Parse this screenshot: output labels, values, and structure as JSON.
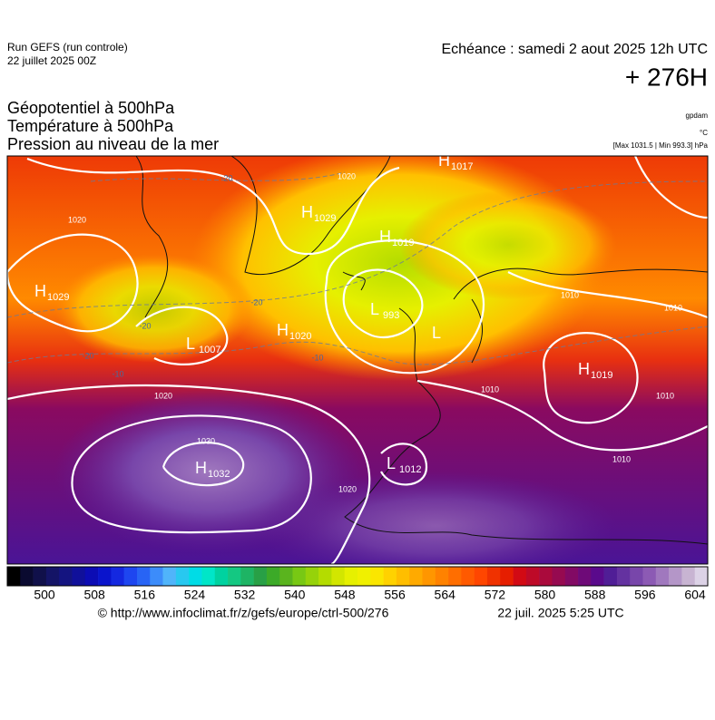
{
  "header": {
    "run": "Run GEFS (run controle)",
    "date": "22 juillet 2025 00Z",
    "echeance": "Echéance : samedi 2 aout 2025 12h UTC",
    "lead": "+ 276H"
  },
  "titles": [
    "Géopotentiel à 500hPa",
    "Température à 500hPa",
    "Pression au niveau de la mer"
  ],
  "units": [
    "gpdam",
    "°C",
    "[Max 1031.5 | Min 993.3] hPa"
  ],
  "map": {
    "centers": [
      {
        "symbol": "H",
        "value": "1017"
      },
      {
        "symbol": "H",
        "value": "1029"
      },
      {
        "symbol": "H",
        "value": "1019"
      },
      {
        "symbol": "H",
        "value": "1029"
      },
      {
        "symbol": "L",
        "value": "993"
      },
      {
        "symbol": "L"
      },
      {
        "symbol": "L",
        "value": "1007"
      },
      {
        "symbol": "H",
        "value": "1020"
      },
      {
        "symbol": "H",
        "value": "1019"
      },
      {
        "symbol": "H",
        "value": "1032"
      },
      {
        "symbol": "L",
        "value": "1012"
      }
    ],
    "isobar_labels": [
      "1020",
      "1020",
      "1020",
      "1030",
      "1020",
      "1010",
      "1010",
      "1010",
      "1010",
      "1010"
    ],
    "isotherm_labels": [
      "-20",
      "-20",
      "-20",
      "-20",
      "-10",
      "-10"
    ]
  },
  "colorbar": {
    "ticks": [
      500,
      508,
      516,
      524,
      532,
      540,
      548,
      556,
      564,
      572,
      580,
      588,
      596,
      604
    ],
    "colors": [
      "#000000",
      "#0a0a30",
      "#10104a",
      "#141466",
      "#141480",
      "#10109a",
      "#0c0cb4",
      "#0a14cc",
      "#1428e0",
      "#1e46f0",
      "#2864f5",
      "#3c8cfa",
      "#50b4fa",
      "#28c8f0",
      "#00dce6",
      "#00e6c8",
      "#00d2a0",
      "#14c882",
      "#1eb464",
      "#28a046",
      "#3caa28",
      "#5ab41e",
      "#78c814",
      "#96d20a",
      "#b4dc00",
      "#d2e600",
      "#e6f000",
      "#f0f000",
      "#fae600",
      "#ffd200",
      "#ffbe00",
      "#ffaa00",
      "#ff9600",
      "#ff8200",
      "#ff6e00",
      "#ff5a00",
      "#ff4600",
      "#f03200",
      "#e61e00",
      "#d20a14",
      "#be0a28",
      "#aa0a3c",
      "#960a50",
      "#820a64",
      "#6e0a78",
      "#5a0a8c",
      "#501e96",
      "#6432a0",
      "#7846aa",
      "#8c5ab4",
      "#a078be",
      "#b496c8",
      "#c8b4d2",
      "#dcd2e6"
    ]
  },
  "footer": {
    "url": "© http://www.infoclimat.fr/z/gefs/europe/ctrl-500/276",
    "generated": "22 juil. 2025  5:25 UTC"
  }
}
